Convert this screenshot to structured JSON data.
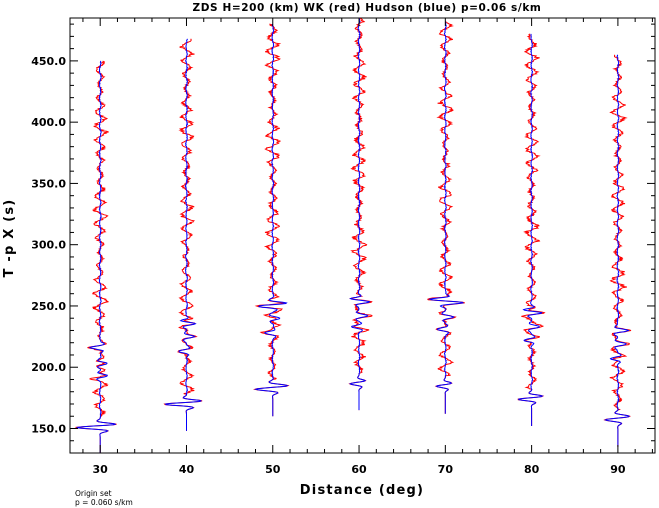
{
  "chart_data": {
    "type": "line",
    "title": "ZDS H=200 (km) WK (red) Hudson (blue) p=0.06 s/km",
    "xlabel": "Distance (deg)",
    "ylabel": "T -p X (s)",
    "xlim": [
      26.5,
      94.3
    ],
    "ylim": [
      130,
      485
    ],
    "x_ticks": [
      "30",
      "40",
      "50",
      "60",
      "70",
      "80",
      "90"
    ],
    "y_ticks": [
      "150.0",
      "200.0",
      "250.0",
      "300.0",
      "350.0",
      "400.0",
      "450.0"
    ],
    "note_lines": [
      "Origin set",
      "p = 0.060 s/km"
    ],
    "series": [
      {
        "name": "WK",
        "color": "#ff0000"
      },
      {
        "name": "Hudson",
        "color": "#0000ff"
      }
    ],
    "traces": [
      {
        "distance": 30,
        "t_start": 130,
        "t_end": 450,
        "arrivals": [
          {
            "t": 151,
            "amp": -5.5
          },
          {
            "t": 153,
            "amp": 2.5
          },
          {
            "t": 193,
            "amp": 2
          },
          {
            "t": 203,
            "amp": 2
          },
          {
            "t": 216,
            "amp": -2.5
          }
        ]
      },
      {
        "distance": 40,
        "t_start": 148,
        "t_end": 468,
        "arrivals": [
          {
            "t": 170,
            "amp": -5
          },
          {
            "t": 172,
            "amp": 2.5
          },
          {
            "t": 213,
            "amp": -2
          },
          {
            "t": 225,
            "amp": 2
          },
          {
            "t": 237,
            "amp": -2
          },
          {
            "t": 236,
            "amp": 3
          }
        ]
      },
      {
        "distance": 50,
        "t_start": 160,
        "t_end": 480,
        "arrivals": [
          {
            "t": 182,
            "amp": -3.5
          },
          {
            "t": 185,
            "amp": 2.5
          },
          {
            "t": 228,
            "amp": -2
          },
          {
            "t": 240,
            "amp": 2
          },
          {
            "t": 250,
            "amp": -3
          },
          {
            "t": 252,
            "amp": 3
          }
        ]
      },
      {
        "distance": 60,
        "t_start": 165,
        "t_end": 485,
        "arrivals": [
          {
            "t": 187,
            "amp": -3
          },
          {
            "t": 188,
            "amp": 2
          },
          {
            "t": 233,
            "amp": -2
          },
          {
            "t": 242,
            "amp": 2
          },
          {
            "t": 255,
            "amp": -3
          },
          {
            "t": 254,
            "amp": 3.5
          }
        ]
      },
      {
        "distance": 70,
        "t_start": 162,
        "t_end": 482,
        "arrivals": [
          {
            "t": 185,
            "amp": -3
          },
          {
            "t": 186,
            "amp": 2
          },
          {
            "t": 231,
            "amp": -2
          },
          {
            "t": 241,
            "amp": 2
          },
          {
            "t": 255,
            "amp": -3
          },
          {
            "t": 253,
            "amp": 4
          }
        ]
      },
      {
        "distance": 80,
        "t_start": 152,
        "t_end": 472,
        "arrivals": [
          {
            "t": 174,
            "amp": -3
          },
          {
            "t": 176,
            "amp": 2
          },
          {
            "t": 222,
            "amp": -2
          },
          {
            "t": 233,
            "amp": 2
          },
          {
            "t": 246,
            "amp": -3
          },
          {
            "t": 245,
            "amp": 3.5
          }
        ]
      },
      {
        "distance": 90,
        "t_start": 135,
        "t_end": 455,
        "arrivals": [
          {
            "t": 157,
            "amp": -2.5
          },
          {
            "t": 160,
            "amp": 2
          },
          {
            "t": 207,
            "amp": -2
          },
          {
            "t": 219,
            "amp": 2
          },
          {
            "t": 230,
            "amp": 2.5
          }
        ]
      }
    ]
  }
}
